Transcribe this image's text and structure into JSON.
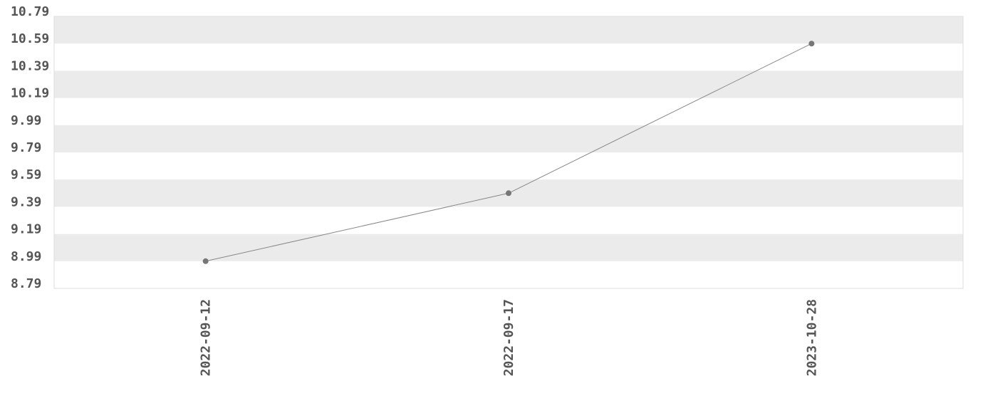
{
  "chart_data": {
    "type": "line",
    "title": "",
    "xlabel": "",
    "ylabel": "",
    "categories": [
      "2022-09-12",
      "2022-09-17",
      "2023-10-28"
    ],
    "series": [
      {
        "values": [
          8.99,
          9.49,
          10.59
        ]
      }
    ],
    "ylim": [
      8.79,
      10.79
    ],
    "yticks": [
      "8.79",
      "8.99",
      "9.19",
      "9.39",
      "9.59",
      "9.79",
      "9.99",
      "10.19",
      "10.39",
      "10.59",
      "10.79"
    ],
    "grid": "alternating horizontal bands",
    "legend": "none",
    "colors": {
      "line": "#888888",
      "marker": "#777777",
      "band": "#ebebeb",
      "text": "#555555",
      "border": "#dddddd"
    }
  }
}
